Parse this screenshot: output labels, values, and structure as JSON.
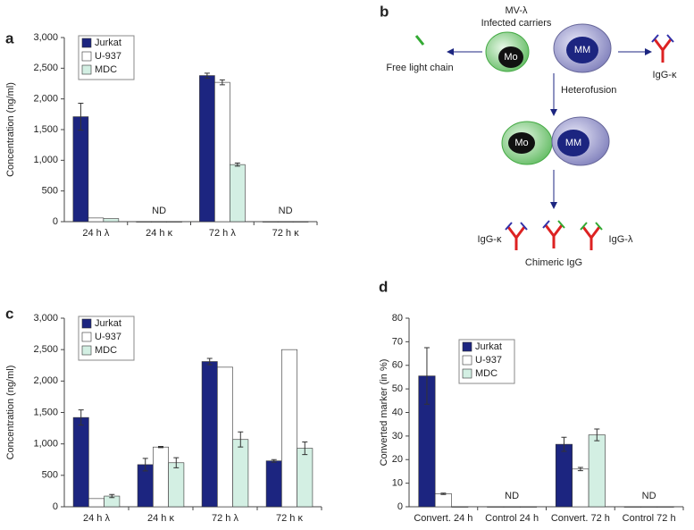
{
  "chart_data": [
    {
      "type": "bar",
      "panel": "a",
      "y_label": "Concentration (ng/ml)",
      "categories": [
        "24 h λ",
        "24 h κ",
        "72 h λ",
        "72 h κ"
      ],
      "ylim": [
        0,
        3000
      ],
      "yticks": [
        0,
        500,
        {
          "value": 1000,
          "label": "1,000"
        },
        {
          "value": 1500,
          "label": "1,500"
        },
        {
          "value": 2000,
          "label": "2,000"
        },
        {
          "value": 2500,
          "label": "2,500"
        },
        {
          "value": 3000,
          "label": "3,000"
        }
      ],
      "series": [
        {
          "name": "Jurkat",
          "color": "#1c2580",
          "values": [
            1710,
            0,
            2380,
            0
          ],
          "errors": [
            220,
            null,
            40,
            null
          ]
        },
        {
          "name": "U-937",
          "color": "#ffffff",
          "values": [
            60,
            0,
            2270,
            0
          ],
          "errors": [
            null,
            null,
            40,
            null
          ]
        },
        {
          "name": "MDC",
          "color": "#d3efe3",
          "values": [
            50,
            0,
            930,
            0
          ],
          "errors": [
            null,
            null,
            25,
            null
          ]
        }
      ],
      "annotations": [
        {
          "text": "ND",
          "x": "24 h κ"
        },
        {
          "text": "ND",
          "x": "72 h κ"
        }
      ]
    },
    {
      "type": "bar",
      "panel": "c",
      "y_label": "Concentration (ng/ml)",
      "categories": [
        "24 h λ",
        "24 h κ",
        "72 h λ",
        "72 h κ"
      ],
      "ylim": [
        0,
        3000
      ],
      "yticks": [
        0,
        500,
        {
          "value": 1000,
          "label": "1,000"
        },
        {
          "value": 1500,
          "label": "1,500"
        },
        {
          "value": 2000,
          "label": "2,000"
        },
        {
          "value": 2500,
          "label": "2,500"
        },
        {
          "value": 3000,
          "label": "3,000"
        }
      ],
      "series": [
        {
          "name": "Jurkat",
          "color": "#1c2580",
          "values": [
            1420,
            670,
            2310,
            730
          ],
          "errors": [
            120,
            100,
            50,
            20
          ]
        },
        {
          "name": "U-937",
          "color": "#ffffff",
          "values": [
            130,
            950,
            2220,
            2500
          ],
          "errors": [
            null,
            10,
            null,
            null
          ]
        },
        {
          "name": "MDC",
          "color": "#d3efe3",
          "values": [
            170,
            700,
            1070,
            930
          ],
          "errors": [
            25,
            80,
            120,
            100
          ]
        }
      ],
      "annotations": []
    },
    {
      "type": "bar",
      "panel": "d",
      "y_label": "Converted marker (in %)",
      "categories": [
        "Convert. 24 h",
        "Control 24 h",
        "Convert. 72 h",
        "Control 72 h"
      ],
      "ylim": [
        0,
        80
      ],
      "yticks": [
        0,
        10,
        20,
        30,
        40,
        50,
        60,
        70,
        80
      ],
      "series": [
        {
          "name": "Jurkat",
          "color": "#1c2580",
          "values": [
            55.5,
            0,
            26.5,
            0
          ],
          "errors": [
            12,
            null,
            3,
            null
          ]
        },
        {
          "name": "U-937",
          "color": "#ffffff",
          "values": [
            5.5,
            0,
            16,
            0
          ],
          "errors": [
            0.3,
            null,
            0.7,
            null
          ]
        },
        {
          "name": "MDC",
          "color": "#d3efe3",
          "values": [
            0,
            0,
            30.5,
            0
          ],
          "errors": [
            null,
            null,
            2.5,
            null
          ]
        }
      ],
      "annotations": [
        {
          "text": "ND",
          "x": "Control 24 h"
        },
        {
          "text": "ND",
          "x": "Control 72 h"
        }
      ]
    }
  ],
  "diagram": {
    "panel": "b",
    "virus": "MV-λ",
    "carriers": "Infected carriers",
    "free_chain": "Free light chain",
    "igg_kappa": "IgG-κ",
    "mo": "Mo",
    "mm": "MM",
    "fusion": "Heterofusion",
    "fused_mo": "Mo",
    "fused_mm": "MM",
    "out_kappa": "IgG-κ",
    "out_lambda": "IgG-λ",
    "chimeric": "Chimeric IgG"
  }
}
